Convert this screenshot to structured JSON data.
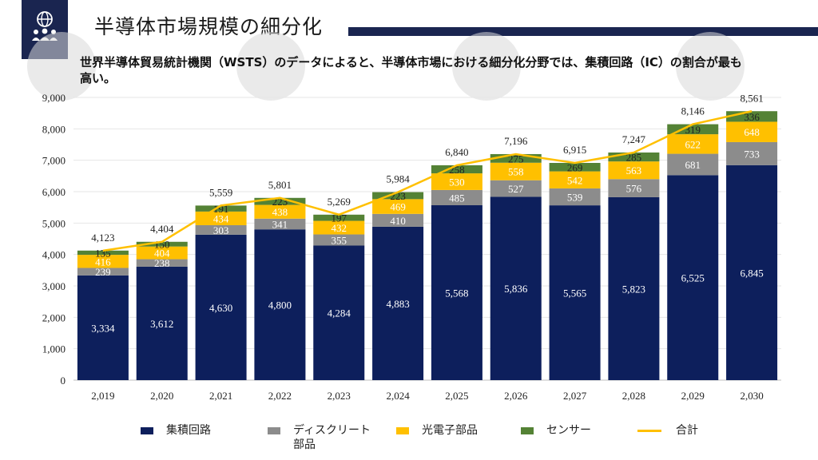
{
  "header": {
    "title": "半導体市場規模の細分化",
    "subtitle": "世界半導体貿易統計機関（WSTS）のデータによると、半導体市場における細分化分野では、集積回路（IC）の割合が最も高い。",
    "logo_icon": "globe-people-icon",
    "accent_color": "#1a2550"
  },
  "chart_data": {
    "type": "bar",
    "stacked": true,
    "categories": [
      "2,019",
      "2,020",
      "2,021",
      "2,022",
      "2,023",
      "2,024",
      "2,025",
      "2,026",
      "2,027",
      "2,028",
      "2,029",
      "2,030"
    ],
    "series": [
      {
        "name": "集積回路",
        "color": "#0d1f5c",
        "values": [
          3334,
          3612,
          4630,
          4800,
          4284,
          4883,
          5568,
          5836,
          5565,
          5823,
          6525,
          6845
        ]
      },
      {
        "name": "ディスクリート部品",
        "color": "#8c8c8c",
        "values": [
          239,
          238,
          303,
          341,
          355,
          410,
          485,
          527,
          539,
          576,
          681,
          733
        ]
      },
      {
        "name": "光電子部品",
        "color": "#ffc000",
        "values": [
          416,
          404,
          434,
          438,
          432,
          469,
          530,
          558,
          542,
          563,
          622,
          648
        ]
      },
      {
        "name": "センサー",
        "color": "#548235",
        "values": [
          135,
          150,
          191,
          223,
          197,
          223,
          258,
          275,
          269,
          285,
          319,
          336
        ]
      }
    ],
    "total": {
      "name": "合計",
      "color": "#ffc000",
      "values": [
        4123,
        4404,
        5559,
        5801,
        5269,
        5984,
        6840,
        7196,
        6915,
        7247,
        8146,
        8561
      ]
    },
    "value_labels": [
      [
        "3,334",
        "3,612",
        "4,630",
        "4,800",
        "4,284",
        "4,883",
        "5,568",
        "5,836",
        "5,565",
        "5,823",
        "6,525",
        "6,845"
      ],
      [
        "239",
        "238",
        "303",
        "341",
        "355",
        "410",
        "485",
        "527",
        "539",
        "576",
        "681",
        "733"
      ],
      [
        "416",
        "404",
        "434",
        "438",
        "432",
        "469",
        "530",
        "558",
        "542",
        "563",
        "622",
        "648"
      ],
      [
        "135",
        "150",
        "191",
        "223",
        "197",
        "223",
        "258",
        "275",
        "269",
        "285",
        "319",
        "336"
      ]
    ],
    "total_labels": [
      "4,123",
      "4,404",
      "5,559",
      "5,801",
      "5,269",
      "5,984",
      "6,840",
      "7,196",
      "6,915",
      "7,247",
      "8,146",
      "8,561"
    ],
    "ylim": [
      0,
      9000
    ],
    "yticks": [
      0,
      1000,
      2000,
      3000,
      4000,
      5000,
      6000,
      7000,
      8000,
      9000
    ],
    "ytick_labels": [
      "0",
      "1,000",
      "2,000",
      "3,000",
      "4,000",
      "5,000",
      "6,000",
      "7,000",
      "8,000",
      "9,000"
    ],
    "grid": true,
    "legend_position": "bottom"
  },
  "legend": {
    "items": [
      {
        "label": "集積回路",
        "color": "#0d1f5c",
        "kind": "swatch"
      },
      {
        "label": "ディスクリート\n部品",
        "color": "#8c8c8c",
        "kind": "swatch"
      },
      {
        "label": "光電子部品",
        "color": "#ffc000",
        "kind": "swatch"
      },
      {
        "label": "センサー",
        "color": "#548235",
        "kind": "swatch"
      },
      {
        "label": "合計",
        "color": "#ffc000",
        "kind": "line"
      }
    ]
  }
}
